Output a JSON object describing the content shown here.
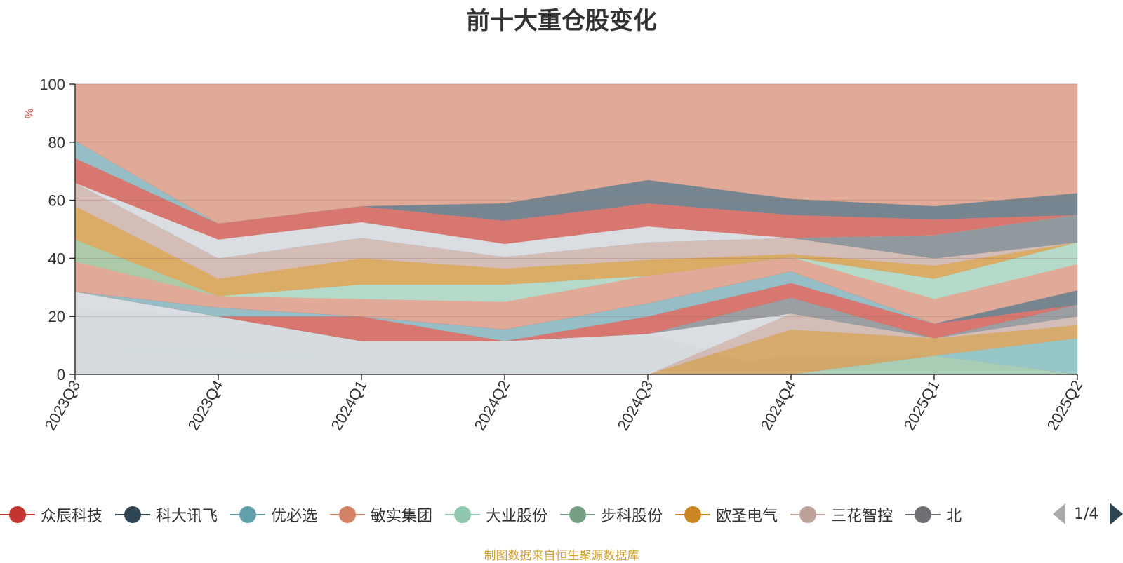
{
  "chart_data": {
    "type": "area",
    "title": "前十大重仓股变化",
    "ylabel": "%",
    "ylim": [
      0,
      100
    ],
    "yticks": [
      0,
      20,
      40,
      60,
      80,
      100
    ],
    "categories": [
      "2023Q3",
      "2023Q4",
      "2024Q1",
      "2024Q2",
      "2024Q3",
      "2024Q4",
      "2025Q1",
      "2025Q2"
    ],
    "grid": true,
    "stacked": true,
    "bands": [
      {
        "color": "#6e7e8a",
        "top": [
          10,
          5.5,
          5,
          0,
          0,
          0,
          0,
          0
        ]
      },
      {
        "color": "#9fd4b6",
        "top": [
          10,
          8.5,
          5,
          0,
          0,
          0,
          0,
          0
        ]
      },
      {
        "color": "#d3b9b3",
        "top": [
          18,
          16.5,
          11.5,
          4.5,
          6,
          0,
          0,
          0
        ]
      },
      {
        "color": "#96999e",
        "top": [
          22.5,
          20,
          11.5,
          11.5,
          14,
          0,
          0,
          0
        ]
      },
      {
        "color": "#a3c9b0",
        "top": [
          0,
          0,
          0,
          0,
          0,
          6.5,
          6.5,
          0
        ]
      },
      {
        "color": "#91c3c6",
        "top": [
          0,
          0,
          0,
          0,
          0,
          0,
          6.5,
          12.5
        ]
      },
      {
        "color": "#d5a665",
        "top": [
          0,
          0,
          0,
          0,
          0,
          15.5,
          12.5,
          17
        ]
      },
      {
        "color": "#d3b9b3",
        "top": [
          0,
          0,
          0,
          0,
          0,
          21,
          12.5,
          20
        ]
      },
      {
        "color": "#d8dce2",
        "top": [
          28.5,
          20,
          11.5,
          11.5,
          14,
          21,
          12.5,
          20
        ]
      },
      {
        "color": "#96999e",
        "top": [
          28.5,
          20,
          11.5,
          11.5,
          14,
          26.5,
          12.5,
          24
        ]
      },
      {
        "color": "#d57067",
        "top": [
          28.5,
          20,
          20,
          11.5,
          20,
          31.5,
          17.5,
          24
        ]
      },
      {
        "color": "#8fbac4",
        "top": [
          28.5,
          23,
          20,
          15.5,
          24.5,
          35.5,
          17.5,
          24
        ]
      },
      {
        "color": "#6f7e8a",
        "top": [
          28.5,
          23,
          20,
          15.5,
          24.5,
          35.5,
          17.5,
          29
        ]
      },
      {
        "color": "#dfa592",
        "top": [
          39,
          27,
          26,
          25,
          34,
          40.5,
          26,
          38
        ]
      },
      {
        "color": "#b2d8c6",
        "top": [
          39,
          27,
          31,
          31,
          34,
          40.5,
          33,
          45.5
        ]
      },
      {
        "color": "#a8c7a2",
        "top": [
          46.5,
          27,
          31,
          31,
          34,
          40.5,
          33,
          45.5
        ]
      },
      {
        "color": "#d9a85e",
        "top": [
          58,
          33,
          40,
          36.5,
          39.5,
          41.5,
          37.5,
          45.5
        ]
      },
      {
        "color": "#d3b9b3",
        "top": [
          66,
          40,
          47,
          40.5,
          45.5,
          47,
          40,
          45.5
        ]
      },
      {
        "color": "#8b9399",
        "top": [
          66,
          40,
          47,
          40.5,
          45.5,
          47,
          48,
          55
        ]
      },
      {
        "color": "#d8dce2",
        "top": [
          66,
          46.5,
          52.5,
          45,
          51,
          47,
          48,
          55
        ]
      },
      {
        "color": "#d57067",
        "top": [
          74.5,
          52,
          58,
          53,
          59,
          55,
          53.5,
          55
        ]
      },
      {
        "color": "#8fbac4",
        "top": [
          80.5,
          52,
          58,
          53,
          59,
          55,
          53.5,
          55
        ]
      },
      {
        "color": "#6f7e8a",
        "top": [
          80.5,
          52,
          58,
          59,
          67,
          60.5,
          58,
          62.5
        ]
      },
      {
        "color": "#dfa592",
        "top": [
          100,
          100,
          100,
          100,
          100,
          100,
          100,
          100
        ]
      }
    ]
  },
  "legend": {
    "items": [
      {
        "label": "众辰科技",
        "color": "#c23531"
      },
      {
        "label": "科大讯飞",
        "color": "#2f4554"
      },
      {
        "label": "优必选",
        "color": "#61a0a8"
      },
      {
        "label": "敏实集团",
        "color": "#d48265"
      },
      {
        "label": "大业股份",
        "color": "#91c7ae"
      },
      {
        "label": "步科股份",
        "color": "#749f83"
      },
      {
        "label": "欧圣电气",
        "color": "#ca8622"
      },
      {
        "label": "三花智控",
        "color": "#bda29a"
      },
      {
        "label": "北",
        "color": "#6e7074"
      }
    ],
    "page": "1/4"
  },
  "source_note": "制图数据来自恒生聚源数据库"
}
